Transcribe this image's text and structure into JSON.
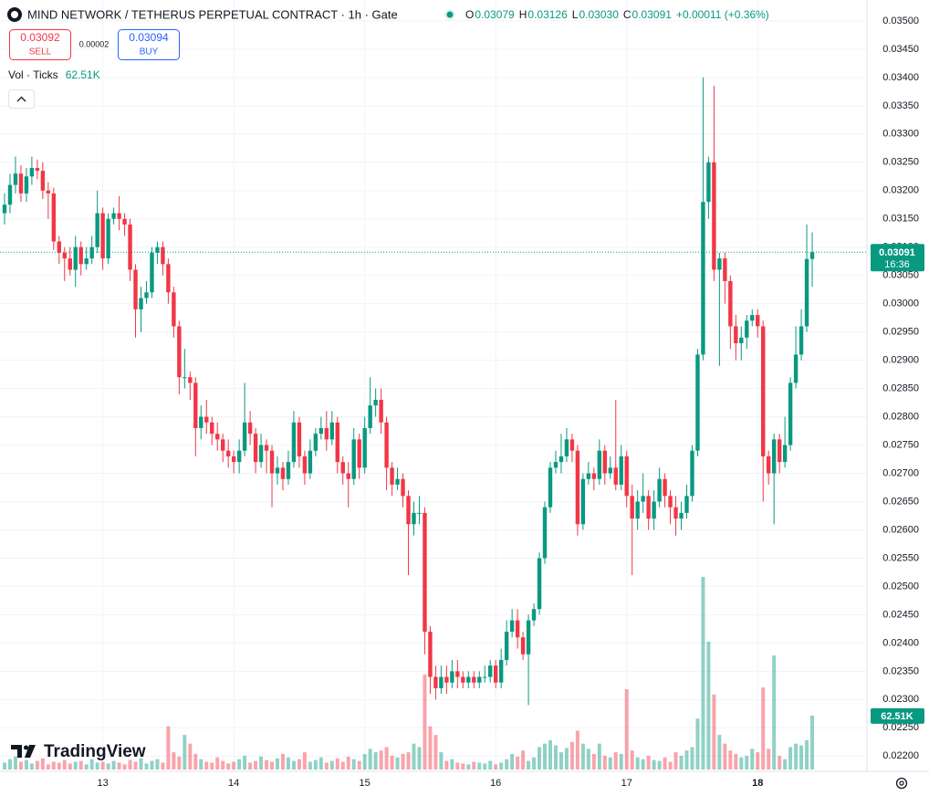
{
  "header": {
    "symbol": "MIND NETWORK / TETHERUS PERPETUAL CONTRACT · 1h · Gate",
    "ohlc": [
      {
        "key": "O",
        "value": "0.03079"
      },
      {
        "key": "H",
        "value": "0.03126"
      },
      {
        "key": "L",
        "value": "0.03030"
      },
      {
        "key": "C",
        "value": "0.03091"
      }
    ],
    "change": "+0.00011 (+0.36%)",
    "sell_price": "0.03092",
    "sell_label": "SELL",
    "spread": "0.00002",
    "buy_price": "0.03094",
    "buy_label": "BUY",
    "volume_label": "Vol · Ticks",
    "volume_value": "62.51K",
    "countdown": "16:36",
    "logo": "TradingView"
  },
  "chart_data": {
    "type": "candlestick",
    "up_color": "#089981",
    "down_color": "#f23645",
    "grid": true,
    "categories": [
      null,
      null,
      null,
      null,
      null,
      null,
      null,
      null,
      null,
      null,
      null,
      null,
      null,
      null,
      null,
      null,
      null,
      null,
      "13",
      null,
      null,
      null,
      null,
      null,
      null,
      null,
      null,
      null,
      null,
      null,
      null,
      null,
      null,
      null,
      null,
      null,
      null,
      null,
      null,
      null,
      null,
      null,
      "14",
      null,
      null,
      null,
      null,
      null,
      null,
      null,
      null,
      null,
      null,
      null,
      null,
      null,
      null,
      null,
      null,
      null,
      null,
      null,
      null,
      null,
      null,
      null,
      "15",
      null,
      null,
      null,
      null,
      null,
      null,
      null,
      null,
      null,
      null,
      null,
      null,
      null,
      null,
      null,
      null,
      null,
      null,
      null,
      null,
      null,
      null,
      null,
      "16",
      null,
      null,
      null,
      null,
      null,
      null,
      null,
      null,
      null,
      null,
      null,
      null,
      null,
      null,
      null,
      null,
      null,
      null,
      null,
      null,
      null,
      null,
      null,
      "17",
      null,
      null,
      null,
      null,
      null,
      null,
      null,
      null,
      null,
      null,
      null,
      null,
      null,
      null,
      null,
      null,
      null,
      null,
      null,
      null,
      null,
      null,
      null,
      "18",
      null,
      null,
      null,
      null,
      null,
      null,
      null,
      null,
      null,
      null
    ],
    "open": [
      0.0316,
      0.03175,
      0.0321,
      0.0323,
      0.03195,
      0.03225,
      0.0324,
      0.03235,
      0.032,
      0.03195,
      0.0311,
      0.0309,
      0.0308,
      0.0306,
      0.031,
      0.0307,
      0.0308,
      0.031,
      0.0316,
      0.0308,
      0.0315,
      0.0316,
      0.0315,
      0.0314,
      0.0306,
      0.0299,
      0.0301,
      0.0302,
      0.0309,
      0.031,
      0.0307,
      0.0302,
      0.0296,
      0.0287,
      0.0287,
      0.0286,
      0.0278,
      0.028,
      0.0279,
      0.0277,
      0.0276,
      0.0274,
      0.0273,
      0.0272,
      0.0274,
      0.0279,
      0.0277,
      0.0272,
      0.0275,
      0.0274,
      0.027,
      0.0271,
      0.0269,
      0.0272,
      0.0279,
      0.0273,
      0.027,
      0.0274,
      0.0277,
      0.0278,
      0.0276,
      0.0279,
      0.0272,
      0.027,
      0.0269,
      0.0276,
      0.0271,
      0.0278,
      0.0282,
      0.0283,
      0.0279,
      0.0271,
      0.0268,
      0.0269,
      0.0266,
      0.0261,
      0.0263,
      0.0263,
      0.0242,
      0.0234,
      0.0232,
      0.0234,
      0.0233,
      0.0235,
      0.0234,
      0.0233,
      0.0234,
      0.0233,
      0.0234,
      0.0234,
      0.0236,
      0.0233,
      0.0237,
      0.0242,
      0.0244,
      0.0241,
      0.0238,
      0.0244,
      0.0246,
      0.0255,
      0.0264,
      0.0271,
      0.0272,
      0.0273,
      0.0276,
      0.0274,
      0.0261,
      0.0269,
      0.027,
      0.0269,
      0.0274,
      0.027,
      0.0271,
      0.0268,
      0.0273,
      0.0266,
      0.0262,
      0.0265,
      0.0266,
      0.0262,
      0.0265,
      0.0269,
      0.0266,
      0.0264,
      0.0262,
      0.0263,
      0.0266,
      0.0274,
      0.0291,
      0.0318,
      0.0325,
      0.0306,
      0.0308,
      0.0304,
      0.0296,
      0.0293,
      0.0294,
      0.0297,
      0.0298,
      0.0296,
      0.0273,
      0.027,
      0.0276,
      0.0272,
      0.0275,
      0.0286,
      0.0291,
      0.0296,
      0.03079
    ],
    "high": [
      0.03195,
      0.0323,
      0.0326,
      0.03245,
      0.0324,
      0.0326,
      0.03255,
      0.0325,
      0.03215,
      0.03205,
      0.0312,
      0.031,
      0.031,
      0.0312,
      0.0311,
      0.031,
      0.0312,
      0.032,
      0.0317,
      0.0316,
      0.0317,
      0.0319,
      0.0316,
      0.0315,
      0.0307,
      0.0303,
      0.0304,
      0.031,
      0.0311,
      0.0311,
      0.0308,
      0.0303,
      0.0297,
      0.0292,
      0.0288,
      0.0287,
      0.0282,
      0.0283,
      0.028,
      0.0279,
      0.0277,
      0.0276,
      0.0274,
      0.0276,
      0.0286,
      0.0281,
      0.0278,
      0.0277,
      0.0276,
      0.0275,
      0.0273,
      0.0272,
      0.0274,
      0.0281,
      0.028,
      0.0274,
      0.0276,
      0.0278,
      0.028,
      0.0281,
      0.0281,
      0.028,
      0.0273,
      0.0272,
      0.0278,
      0.0277,
      0.028,
      0.0287,
      0.0285,
      0.0285,
      0.028,
      0.0272,
      0.0271,
      0.027,
      0.0267,
      0.0265,
      0.0266,
      0.0264,
      0.0243,
      0.0236,
      0.0236,
      0.0236,
      0.0237,
      0.0237,
      0.0235,
      0.0235,
      0.0235,
      0.0235,
      0.0236,
      0.0237,
      0.0237,
      0.0239,
      0.0244,
      0.0246,
      0.0246,
      0.0242,
      0.0245,
      0.0247,
      0.0256,
      0.0265,
      0.0272,
      0.0274,
      0.0277,
      0.0278,
      0.0277,
      0.0275,
      0.027,
      0.0272,
      0.0271,
      0.0276,
      0.0275,
      0.0273,
      0.0283,
      0.0275,
      0.0274,
      0.0268,
      0.0267,
      0.027,
      0.0267,
      0.0267,
      0.0271,
      0.027,
      0.0267,
      0.0266,
      0.0265,
      0.0268,
      0.0275,
      0.0292,
      0.034,
      0.0326,
      0.03385,
      0.0309,
      0.0309,
      0.0305,
      0.0298,
      0.0296,
      0.0298,
      0.0299,
      0.0299,
      0.0297,
      0.0274,
      0.0277,
      0.0277,
      0.028,
      0.0287,
      0.0296,
      0.0299,
      0.0314,
      0.03126
    ],
    "low": [
      0.0314,
      0.0316,
      0.03195,
      0.0318,
      0.0318,
      0.0321,
      0.0322,
      0.03185,
      0.0315,
      0.03095,
      0.0307,
      0.0304,
      0.0305,
      0.0303,
      0.0305,
      0.0306,
      0.0307,
      0.0309,
      0.0306,
      0.0307,
      0.0314,
      0.0313,
      0.0312,
      0.0304,
      0.0294,
      0.0295,
      0.03,
      0.0301,
      0.0307,
      0.0305,
      0.03,
      0.0294,
      0.0284,
      0.0285,
      0.0283,
      0.0273,
      0.0276,
      0.0277,
      0.0275,
      0.0274,
      0.0272,
      0.0271,
      0.027,
      0.027,
      0.0273,
      0.0275,
      0.027,
      0.0271,
      0.027,
      0.0264,
      0.0268,
      0.0267,
      0.0268,
      0.0271,
      0.0271,
      0.0268,
      0.0269,
      0.0273,
      0.0276,
      0.0274,
      0.0275,
      0.027,
      0.0268,
      0.0264,
      0.0268,
      0.0269,
      0.027,
      0.0277,
      0.028,
      0.0277,
      0.0267,
      0.0266,
      0.0267,
      0.0264,
      0.0252,
      0.0259,
      0.0261,
      0.0238,
      0.0231,
      0.023,
      0.0231,
      0.0231,
      0.0232,
      0.0232,
      0.0232,
      0.0232,
      0.0232,
      0.0232,
      0.0233,
      0.0233,
      0.0232,
      0.0232,
      0.0236,
      0.0241,
      0.0239,
      0.0237,
      0.0229,
      0.0243,
      0.0245,
      0.0254,
      0.0263,
      0.027,
      0.027,
      0.0272,
      0.0272,
      0.0259,
      0.026,
      0.0268,
      0.0267,
      0.0268,
      0.0268,
      0.0269,
      0.0267,
      0.0267,
      0.0264,
      0.0252,
      0.026,
      0.0263,
      0.026,
      0.026,
      0.0264,
      0.0264,
      0.0261,
      0.0259,
      0.026,
      0.0262,
      0.0265,
      0.0273,
      0.029,
      0.0315,
      0.0304,
      0.0289,
      0.03,
      0.0292,
      0.029,
      0.029,
      0.0292,
      0.0296,
      0.0294,
      0.0265,
      0.0268,
      0.0261,
      0.027,
      0.0271,
      0.0274,
      0.0285,
      0.029,
      0.0295,
      0.0303
    ],
    "close": [
      0.03175,
      0.0321,
      0.0323,
      0.03195,
      0.03225,
      0.0324,
      0.03235,
      0.032,
      0.03195,
      0.0311,
      0.0309,
      0.0308,
      0.0306,
      0.031,
      0.0307,
      0.0308,
      0.031,
      0.0316,
      0.0308,
      0.0315,
      0.0316,
      0.0315,
      0.0314,
      0.0306,
      0.0299,
      0.0301,
      0.0302,
      0.0309,
      0.031,
      0.0307,
      0.0302,
      0.0296,
      0.0287,
      0.0287,
      0.0286,
      0.0278,
      0.028,
      0.0279,
      0.0277,
      0.0276,
      0.0274,
      0.0273,
      0.0272,
      0.0274,
      0.0279,
      0.0277,
      0.0272,
      0.0275,
      0.0274,
      0.027,
      0.0271,
      0.0269,
      0.0272,
      0.0279,
      0.0273,
      0.027,
      0.0274,
      0.0277,
      0.0278,
      0.0276,
      0.0279,
      0.0272,
      0.027,
      0.0269,
      0.0276,
      0.0271,
      0.0278,
      0.0282,
      0.0283,
      0.0279,
      0.0271,
      0.0268,
      0.0269,
      0.0266,
      0.0261,
      0.0263,
      0.0263,
      0.0242,
      0.0234,
      0.0232,
      0.0234,
      0.0233,
      0.0235,
      0.0234,
      0.0233,
      0.0234,
      0.0233,
      0.0234,
      0.0234,
      0.0236,
      0.0233,
      0.0237,
      0.0242,
      0.0244,
      0.0241,
      0.0238,
      0.0244,
      0.0246,
      0.0255,
      0.0264,
      0.0271,
      0.0272,
      0.0273,
      0.0276,
      0.0274,
      0.0261,
      0.0269,
      0.027,
      0.0269,
      0.0274,
      0.027,
      0.0271,
      0.0268,
      0.0273,
      0.0266,
      0.0262,
      0.0265,
      0.0266,
      0.0262,
      0.0265,
      0.0269,
      0.0266,
      0.0264,
      0.0262,
      0.0263,
      0.0266,
      0.0274,
      0.0291,
      0.0318,
      0.0325,
      0.0306,
      0.0308,
      0.0304,
      0.0296,
      0.0293,
      0.0294,
      0.0297,
      0.0298,
      0.0296,
      0.0273,
      0.027,
      0.0276,
      0.0272,
      0.0275,
      0.0286,
      0.0291,
      0.0296,
      0.03079,
      0.03091
    ],
    "volume": [
      8000,
      12000,
      15000,
      9000,
      11000,
      7000,
      10000,
      13000,
      6000,
      9000,
      8000,
      11000,
      7000,
      9000,
      10000,
      6000,
      12000,
      8000,
      9000,
      7000,
      10000,
      8000,
      6000,
      11000,
      9000,
      13000,
      7000,
      10000,
      12000,
      8000,
      50000,
      20000,
      15000,
      40000,
      30000,
      18000,
      12000,
      9000,
      8000,
      14000,
      10000,
      7000,
      9000,
      12000,
      16000,
      8000,
      10000,
      15000,
      11000,
      9000,
      13000,
      18000,
      14000,
      10000,
      12000,
      20000,
      9000,
      11000,
      14000,
      8000,
      10000,
      13000,
      9000,
      15000,
      12000,
      10000,
      18000,
      24000,
      20000,
      22000,
      26000,
      16000,
      14000,
      18000,
      20000,
      30000,
      26000,
      110000,
      50000,
      40000,
      20000,
      10000,
      12000,
      8000,
      7000,
      6000,
      9000,
      8000,
      7000,
      10000,
      6000,
      8000,
      12000,
      18000,
      15000,
      22000,
      10000,
      14000,
      26000,
      30000,
      34000,
      28000,
      20000,
      25000,
      32000,
      45000,
      30000,
      24000,
      18000,
      30000,
      16000,
      14000,
      20000,
      18000,
      93000,
      22000,
      14000,
      12000,
      16000,
      11000,
      10000,
      14000,
      9000,
      20000,
      16000,
      22000,
      26000,
      59000,
      223000,
      148000,
      87000,
      40000,
      30000,
      22000,
      18000,
      14000,
      16000,
      24000,
      20000,
      95000,
      24000,
      132000,
      16000,
      12000,
      26000,
      30000,
      28000,
      34000,
      62510
    ],
    "ylim": [
      0.02173,
      0.03537
    ],
    "yticks": [
      {
        "value": 0.022,
        "label": "0.02200"
      },
      {
        "value": 0.0225,
        "label": "0.02250"
      },
      {
        "value": 0.023,
        "label": "0.02300"
      },
      {
        "value": 0.0235,
        "label": "0.02350"
      },
      {
        "value": 0.024,
        "label": "0.02400"
      },
      {
        "value": 0.0245,
        "label": "0.02450"
      },
      {
        "value": 0.025,
        "label": "0.02500"
      },
      {
        "value": 0.0255,
        "label": "0.02550"
      },
      {
        "value": 0.026,
        "label": "0.02600"
      },
      {
        "value": 0.0265,
        "label": "0.02650"
      },
      {
        "value": 0.027,
        "label": "0.02700"
      },
      {
        "value": 0.0275,
        "label": "0.02750"
      },
      {
        "value": 0.028,
        "label": "0.02800"
      },
      {
        "value": 0.0285,
        "label": "0.02850"
      },
      {
        "value": 0.029,
        "label": "0.02900"
      },
      {
        "value": 0.0295,
        "label": "0.02950"
      },
      {
        "value": 0.03,
        "label": "0.03000"
      },
      {
        "value": 0.0305,
        "label": "0.03050"
      },
      {
        "value": 0.031,
        "label": "0.03100"
      },
      {
        "value": 0.0315,
        "label": "0.03150"
      },
      {
        "value": 0.032,
        "label": "0.03200"
      },
      {
        "value": 0.0325,
        "label": "0.03250"
      },
      {
        "value": 0.033,
        "label": "0.03300"
      },
      {
        "value": 0.0335,
        "label": "0.03350"
      },
      {
        "value": 0.034,
        "label": "0.03400"
      },
      {
        "value": 0.0345,
        "label": "0.03450"
      },
      {
        "value": 0.035,
        "label": "0.03500"
      }
    ]
  }
}
